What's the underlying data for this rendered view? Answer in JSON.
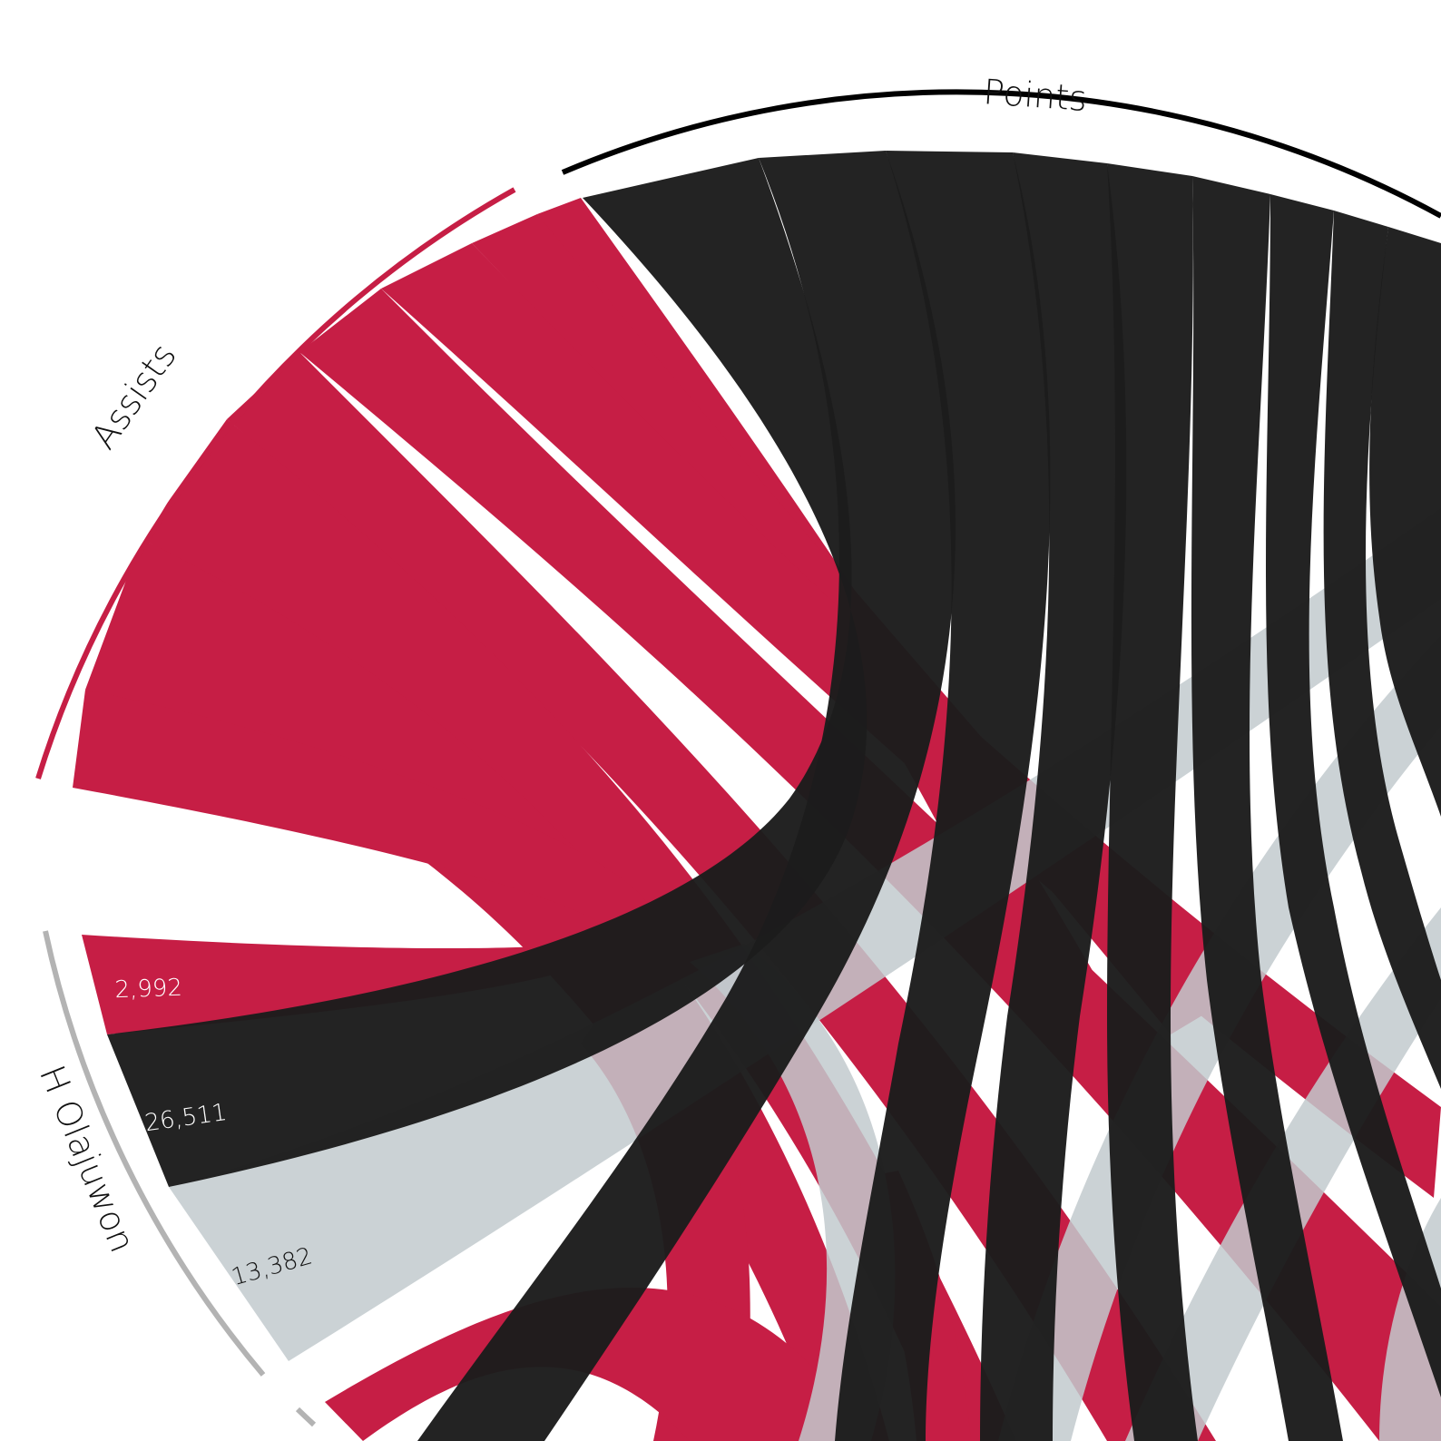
{
  "colors": {
    "assists": "#c61e45",
    "points": "#1c1c1c",
    "rebounds": "#c2cace",
    "player_arc": "#b3b3b3",
    "background": "#ffffff"
  },
  "groups": [
    {
      "id": "points",
      "label": "Points"
    },
    {
      "id": "assists",
      "label": "Assists"
    },
    {
      "id": "player",
      "label": "H Olajuwon"
    }
  ],
  "player_values": {
    "assists": "2,992",
    "points": "26,511",
    "rebounds": "13,382"
  }
}
